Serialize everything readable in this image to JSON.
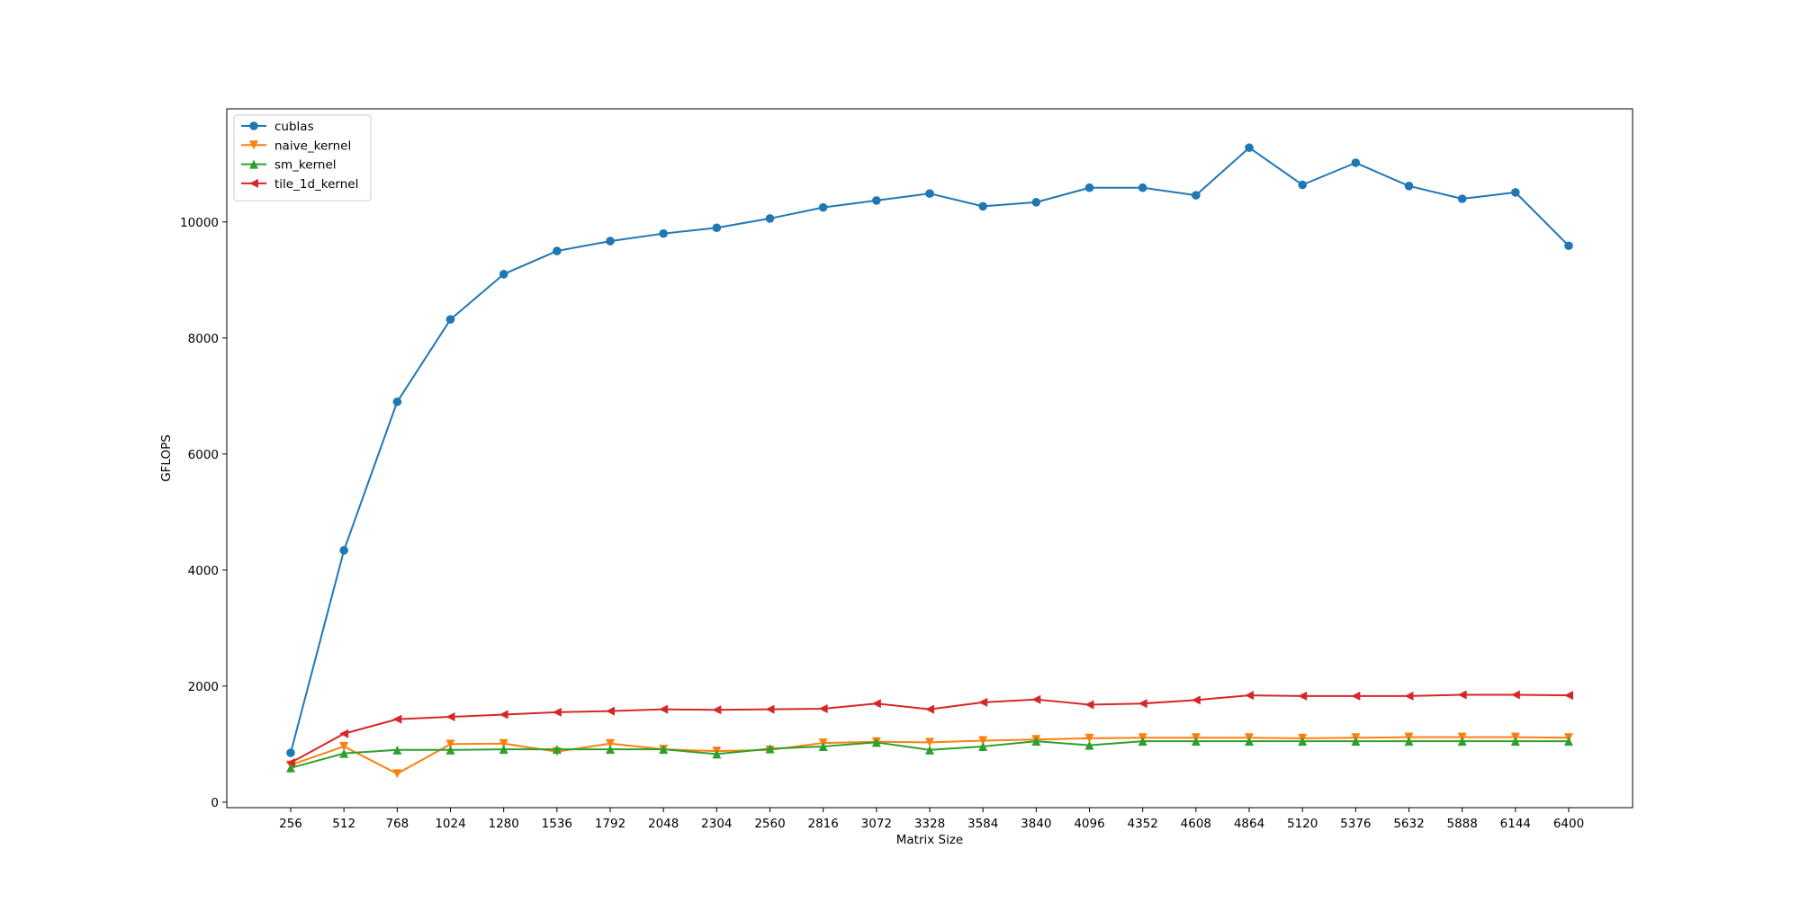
{
  "chart_data": {
    "type": "line",
    "title": "",
    "xlabel": "Matrix Size",
    "ylabel": "GFLOPS",
    "x": [
      256,
      512,
      768,
      1024,
      1280,
      1536,
      1792,
      2048,
      2304,
      2560,
      2816,
      3072,
      3328,
      3584,
      3840,
      4096,
      4352,
      4608,
      4864,
      5120,
      5376,
      5632,
      5888,
      6144,
      6400
    ],
    "x_tick_labels": [
      "256",
      "512",
      "768",
      "1024",
      "1280",
      "1536",
      "1792",
      "2048",
      "2304",
      "2560",
      "2816",
      "3072",
      "3328",
      "3584",
      "3840",
      "4096",
      "4352",
      "4608",
      "4864",
      "5120",
      "5376",
      "5632",
      "5888",
      "6144",
      "6400"
    ],
    "y_ticks": [
      0,
      2000,
      4000,
      6000,
      8000,
      10000
    ],
    "y_tick_labels": [
      "0",
      "2000",
      "4000",
      "6000",
      "8000",
      "10000"
    ],
    "ylim": [
      -95,
      11950
    ],
    "grid": false,
    "legend_position": "top-left",
    "series": [
      {
        "name": "cublas",
        "color": "#1f77b4",
        "marker": "circle",
        "values": [
          850,
          4340,
          6900,
          8320,
          9100,
          9500,
          9670,
          9800,
          9900,
          10060,
          10250,
          10370,
          10490,
          10270,
          10340,
          10590,
          10590,
          10460,
          11280,
          10640,
          11020,
          10620,
          10400,
          10510,
          9590
        ]
      },
      {
        "name": "naive_kernel",
        "color": "#ff7f0e",
        "marker": "triangle-down",
        "values": [
          640,
          960,
          490,
          1000,
          1010,
          870,
          1010,
          910,
          880,
          900,
          1020,
          1040,
          1030,
          1060,
          1080,
          1100,
          1110,
          1110,
          1110,
          1100,
          1110,
          1120,
          1120,
          1120,
          1110
        ]
      },
      {
        "name": "sm_kernel",
        "color": "#2ca02c",
        "marker": "triangle-up",
        "values": [
          590,
          840,
          900,
          900,
          910,
          910,
          910,
          910,
          830,
          920,
          960,
          1030,
          900,
          960,
          1050,
          980,
          1050,
          1050,
          1050,
          1050,
          1050,
          1050,
          1050,
          1050,
          1050
        ]
      },
      {
        "name": "tile_1d_kernel",
        "color": "#d62728",
        "marker": "triangle-left",
        "values": [
          680,
          1180,
          1430,
          1470,
          1510,
          1550,
          1570,
          1600,
          1590,
          1600,
          1610,
          1700,
          1600,
          1720,
          1770,
          1680,
          1700,
          1760,
          1840,
          1830,
          1830,
          1830,
          1850,
          1850,
          1840
        ]
      }
    ]
  }
}
